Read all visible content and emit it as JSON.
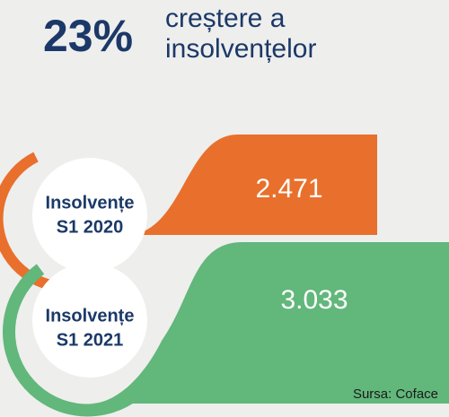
{
  "headline": {
    "figure": "23%",
    "lines": [
      "creștere a",
      "insolvențelor"
    ]
  },
  "items": [
    {
      "label": [
        "Insolvențe",
        "S1 2020"
      ],
      "value": "2.471"
    },
    {
      "label": [
        "Insolvențe",
        "S1 2021"
      ],
      "value": "3.033"
    }
  ],
  "source": "Sursa: Coface"
}
